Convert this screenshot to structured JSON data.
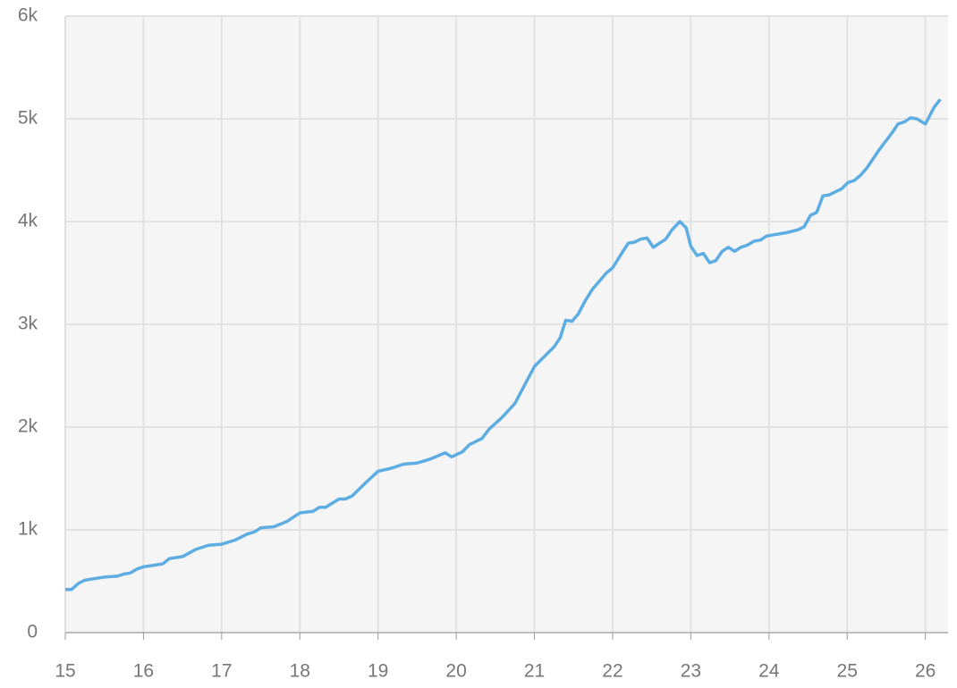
{
  "chart_data": {
    "type": "line",
    "x": [
      15.0,
      15.08,
      15.17,
      15.25,
      15.33,
      15.5,
      15.67,
      15.75,
      15.83,
      15.92,
      16.0,
      16.17,
      16.25,
      16.33,
      16.5,
      16.67,
      16.83,
      17.0,
      17.17,
      17.33,
      17.42,
      17.5,
      17.67,
      17.83,
      18.0,
      18.17,
      18.25,
      18.33,
      18.5,
      18.58,
      18.67,
      18.83,
      19.0,
      19.17,
      19.33,
      19.5,
      19.67,
      19.86,
      19.94,
      20.08,
      20.17,
      20.33,
      20.42,
      20.58,
      20.75,
      21.0,
      21.25,
      21.33,
      21.4,
      21.48,
      21.56,
      21.65,
      21.74,
      21.83,
      21.92,
      22.0,
      22.14,
      22.2,
      22.28,
      22.36,
      22.44,
      22.52,
      22.68,
      22.76,
      22.86,
      22.94,
      23.0,
      23.08,
      23.16,
      23.24,
      23.32,
      23.4,
      23.48,
      23.56,
      23.64,
      23.72,
      23.81,
      23.89,
      23.97,
      24.05,
      24.21,
      24.37,
      24.45,
      24.53,
      24.61,
      24.69,
      24.77,
      24.85,
      24.93,
      25.01,
      25.09,
      25.17,
      25.25,
      25.33,
      25.41,
      25.49,
      25.57,
      25.65,
      25.73,
      25.81,
      25.89,
      26.0,
      26.11,
      26.19
    ],
    "series": [
      {
        "color": "#5dade2",
        "values": [
          420,
          420,
          480,
          510,
          520,
          540,
          550,
          570,
          580,
          620,
          640,
          660,
          670,
          720,
          740,
          810,
          850,
          860,
          900,
          960,
          980,
          1020,
          1030,
          1080,
          1165,
          1180,
          1220,
          1220,
          1300,
          1300,
          1330,
          1450,
          1570,
          1600,
          1640,
          1650,
          1690,
          1750,
          1710,
          1760,
          1830,
          1890,
          1980,
          2090,
          2230,
          2590,
          2780,
          2870,
          3040,
          3030,
          3100,
          3230,
          3340,
          3420,
          3500,
          3550,
          3720,
          3790,
          3800,
          3830,
          3840,
          3750,
          3830,
          3920,
          4000,
          3940,
          3760,
          3670,
          3690,
          3600,
          3620,
          3710,
          3750,
          3710,
          3750,
          3770,
          3810,
          3820,
          3860,
          3870,
          3890,
          3920,
          3950,
          4060,
          4090,
          4250,
          4260,
          4290,
          4320,
          4380,
          4400,
          4450,
          4520,
          4610,
          4700,
          4780,
          4860,
          4950,
          4970,
          5010,
          5000,
          4950,
          5110,
          5190
        ]
      }
    ],
    "xlim": [
      15,
      26.29
    ],
    "ylim": [
      0,
      6000
    ],
    "xticks": [
      15,
      16,
      17,
      18,
      19,
      20,
      21,
      22,
      23,
      24,
      25,
      26
    ],
    "yticks": [
      0,
      {
        "value": 1000,
        "label": "1k"
      },
      {
        "value": 2000,
        "label": "2k"
      },
      {
        "value": 3000,
        "label": "3k"
      },
      {
        "value": 4000,
        "label": "4k"
      },
      {
        "value": 5000,
        "label": "5k"
      },
      {
        "value": 6000,
        "label": "6k"
      }
    ],
    "grid": true
  }
}
